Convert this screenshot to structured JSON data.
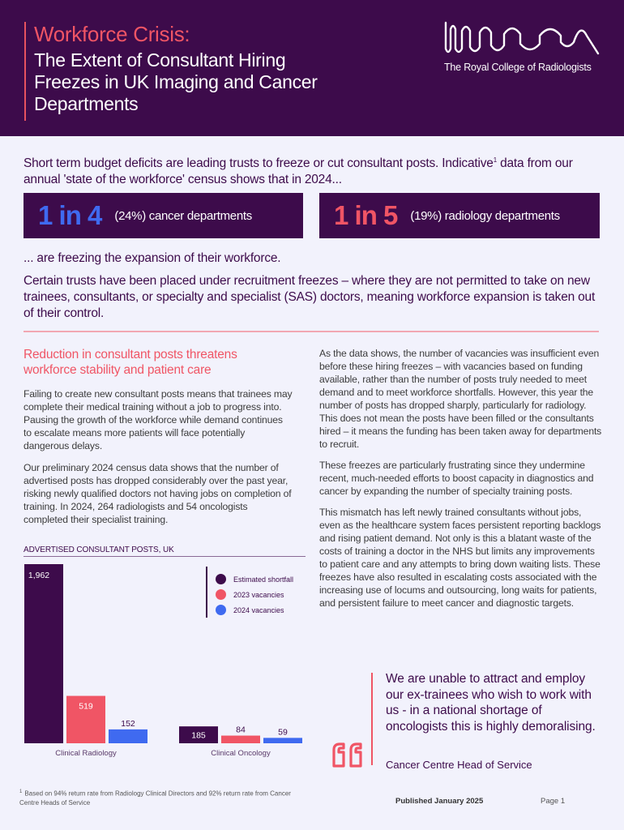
{
  "header": {
    "kicker": "Workforce Crisis:",
    "title": "The Extent of Consultant Hiring Freezes in UK Imaging and Cancer Departments",
    "logo_icon": "rcr-wave-logo-icon",
    "logo_text": "The Royal College of Radiologists"
  },
  "intro": {
    "text_before": "Short term budget deficits are leading trusts to freeze or cut consultant posts. Indicative",
    "footnote_ref": "1",
    "text_after": " data from our annual 'state of the workforce' census shows that in 2024..."
  },
  "stats": [
    {
      "big": "1 in 4",
      "label": "(24%) cancer departments",
      "color": "#3f6af0"
    },
    {
      "big": "1 in 5",
      "label": "(19%) radiology departments",
      "color": "#f05565"
    }
  ],
  "follow_text": "... are freezing the expansion of their workforce.",
  "certain_text": "Certain trusts have been placed under recruitment freezes – where they are not permitted to take on new trainees, consultants, or specialty and specialist (SAS) doctors, meaning workforce expansion is taken out of their control.",
  "left_column": {
    "heading": "Reduction in consultant posts threatens workforce stability and patient care",
    "paragraphs": [
      "Failing to create new consultant posts means that trainees may complete their medical training without a job to progress into. Pausing the growth of the workforce while demand continues to escalate means more patients will face potentially dangerous delays.",
      "Our preliminary 2024 census data shows that the number of advertised posts has dropped considerably over the past year, risking newly qualified doctors not having jobs on completion of training. In 2024, 264 radiologists and 54 oncologists completed their specialist training."
    ]
  },
  "right_column": {
    "paragraphs": [
      "As the data shows, the number of vacancies was insufficient even before these hiring freezes – with vacancies based on funding available, rather than the number of posts truly needed to meet demand and to meet workforce shortfalls. However, this year the number of posts has dropped sharply, particularly for radiology. This does not mean the posts have been filled or the consultants hired – it means the funding has been taken away for departments to recruit.",
      "These freezes are particularly frustrating since they undermine recent, much-needed efforts to boost capacity in diagnostics and cancer by expanding the number of specialty training posts.",
      "This mismatch has left newly trained consultants without jobs, even as the healthcare system faces persistent reporting backlogs and rising patient demand. Not only is this a blatant waste of the costs of training a doctor in the NHS but limits any improvements to patient care and any attempts to bring down waiting lists. These freezes have also resulted in escalating costs associated with the increasing use of locums and outsourcing, long waits for patients, and persistent failure to meet cancer and diagnostic targets."
    ]
  },
  "chart_data": {
    "type": "bar",
    "title": "ADVERTISED CONSULTANT POSTS, UK",
    "categories": [
      "Clinical Radiology",
      "Clinical Oncology"
    ],
    "series": [
      {
        "name": "Estimated shortfall",
        "values": [
          1962,
          185
        ],
        "labels": [
          "1,962",
          "185"
        ],
        "color": "#3d0b4b"
      },
      {
        "name": "2023 vacancies",
        "values": [
          519,
          84
        ],
        "labels": [
          "519",
          "84"
        ],
        "color": "#f05565"
      },
      {
        "name": "2024 vacancies",
        "values": [
          152,
          59
        ],
        "labels": [
          "152",
          "59"
        ],
        "color": "#3f6af0"
      }
    ],
    "xlabel": "",
    "ylabel": "",
    "ylim": [
      0,
      1962
    ],
    "grid": false,
    "legend_position": "top-right"
  },
  "quote": {
    "icon": "quote-marks-icon",
    "text": "We are unable to attract and employ our ex-trainees who wish to work with us - in a national shortage of oncologists this is highly demoralising.",
    "source": "Cancer Centre Head of Service"
  },
  "footer": {
    "footnote_mark": "1",
    "footnote": "Based on 94% return rate from Radiology Clinical Directors and 92% return rate from Cancer Centre Heads of Service",
    "published": "Published January 2025",
    "page": "Page 1"
  }
}
